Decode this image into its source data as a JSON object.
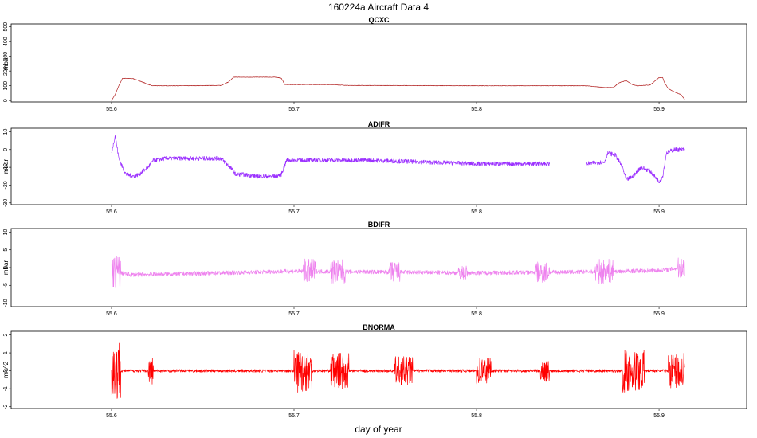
{
  "figure": {
    "title": "160224a   Aircraft Data 4",
    "xlabel": "day of year"
  },
  "chart_data": [
    {
      "type": "line",
      "title": "QCXC",
      "ylabel": "mbar",
      "color": "#b22222",
      "xlim": [
        55.545,
        55.948
      ],
      "ylim": [
        -10,
        520
      ],
      "xticks": [
        55.6,
        55.7,
        55.8,
        55.9
      ],
      "xtick_labels": [
        "55.6",
        "55.7",
        "55.8",
        "55.9"
      ],
      "yticks": [
        0,
        100,
        200,
        300,
        400,
        500
      ],
      "ytick_labels": [
        "0",
        "100",
        "200",
        "300",
        "400",
        "500"
      ],
      "noise": 1.5,
      "series": [
        {
          "x": [
            55.6,
            55.602,
            55.604,
            55.606,
            55.608,
            55.612,
            55.618,
            55.622,
            55.64,
            55.66,
            55.664,
            55.667,
            55.68,
            55.69,
            55.693,
            55.695,
            55.72,
            55.73,
            55.8,
            55.86,
            55.87,
            55.875,
            55.878,
            55.882,
            55.885,
            55.888,
            55.895,
            55.9,
            55.902,
            55.903,
            55.905,
            55.908,
            55.912,
            55.914
          ],
          "y": [
            0,
            40,
            100,
            150,
            150,
            148,
            120,
            100,
            100,
            102,
            125,
            158,
            158,
            158,
            152,
            108,
            108,
            102,
            100,
            100,
            88,
            88,
            120,
            135,
            110,
            100,
            105,
            155,
            155,
            120,
            82,
            60,
            40,
            8
          ]
        }
      ]
    },
    {
      "type": "line",
      "title": "ADIFR",
      "ylabel": "mbar",
      "color": "#9b30ff",
      "xlim": [
        55.545,
        55.948
      ],
      "ylim": [
        -31,
        12
      ],
      "xticks": [
        55.6,
        55.7,
        55.8,
        55.9
      ],
      "xtick_labels": [
        "55.6",
        "55.7",
        "55.8",
        "55.9"
      ],
      "yticks": [
        -30,
        -20,
        -10,
        0,
        10
      ],
      "ytick_labels": [
        "-30",
        "-20",
        "-10",
        "0",
        "10"
      ],
      "noise": 1.2,
      "series": [
        {
          "x": [
            55.6,
            55.602,
            55.604,
            55.606,
            55.608,
            55.612,
            55.615,
            55.62,
            55.623,
            55.63,
            55.66,
            55.665,
            55.668,
            55.672,
            55.68,
            55.69,
            55.693,
            55.696,
            55.7,
            55.72,
            55.74,
            55.8,
            55.83,
            55.84
          ],
          "y": [
            -2,
            8,
            -5,
            -10,
            -14,
            -15,
            -14,
            -10,
            -6,
            -5,
            -5,
            -10,
            -14,
            -14,
            -15,
            -15,
            -14,
            -6,
            -6,
            -6,
            -6,
            -8,
            -8,
            -8
          ]
        },
        {
          "x": [
            55.86,
            55.87,
            55.872,
            55.876,
            55.88,
            55.882,
            55.886,
            55.89,
            55.895,
            55.9,
            55.902,
            55.904,
            55.908,
            55.914
          ],
          "y": [
            -8,
            -7,
            -2,
            -3,
            -10,
            -17,
            -15,
            -10,
            -12,
            -18,
            -15,
            -2,
            0,
            0
          ]
        }
      ]
    },
    {
      "type": "line",
      "title": "BDIFR",
      "ylabel": "mbar",
      "color": "#ee82ee",
      "xlim": [
        55.545,
        55.948
      ],
      "ylim": [
        -11,
        11
      ],
      "xticks": [
        55.6,
        55.7,
        55.8,
        55.9
      ],
      "xtick_labels": [
        "55.6",
        "55.7",
        "55.8",
        "55.9"
      ],
      "yticks": [
        -10,
        -5,
        0,
        5,
        10
      ],
      "ytick_labels": [
        "-10",
        "-5",
        "0",
        "5",
        "10"
      ],
      "noise": 0.6,
      "bursts": [
        [
          55.6,
          55.605,
          5
        ],
        [
          55.705,
          55.712,
          3.5
        ],
        [
          55.72,
          55.728,
          3.5
        ],
        [
          55.752,
          55.758,
          3
        ],
        [
          55.79,
          55.795,
          2
        ],
        [
          55.832,
          55.84,
          3
        ],
        [
          55.865,
          55.875,
          3.5
        ],
        [
          55.91,
          55.914,
          3
        ]
      ],
      "series": [
        {
          "x": [
            55.6,
            55.61,
            55.66,
            55.7,
            55.8,
            55.86,
            55.9,
            55.914
          ],
          "y": [
            -1,
            -2,
            -1.5,
            -1,
            -1.5,
            -1.2,
            -0.8,
            0
          ]
        }
      ]
    },
    {
      "type": "line",
      "title": "BNORMA",
      "ylabel": "m/s^2",
      "color": "#ff0000",
      "xlim": [
        55.545,
        55.948
      ],
      "ylim": [
        -2.1,
        2.2
      ],
      "xticks": [
        55.6,
        55.7,
        55.8,
        55.9
      ],
      "xtick_labels": [
        "55.6",
        "55.7",
        "55.8",
        "55.9"
      ],
      "yticks": [
        -2,
        -1,
        0,
        1,
        2
      ],
      "ytick_labels": [
        "-2",
        "-1",
        "0",
        "1",
        "2"
      ],
      "noise": 0.08,
      "bursts": [
        [
          55.6,
          55.605,
          1.8
        ],
        [
          55.62,
          55.623,
          0.8
        ],
        [
          55.7,
          55.71,
          1.2
        ],
        [
          55.72,
          55.73,
          1.0
        ],
        [
          55.755,
          55.765,
          0.8
        ],
        [
          55.8,
          55.808,
          0.8
        ],
        [
          55.835,
          55.84,
          0.6
        ],
        [
          55.88,
          55.892,
          1.2
        ],
        [
          55.905,
          55.914,
          1.0
        ]
      ],
      "series": [
        {
          "x": [
            55.6,
            55.914
          ],
          "y": [
            0,
            0
          ]
        }
      ]
    }
  ]
}
